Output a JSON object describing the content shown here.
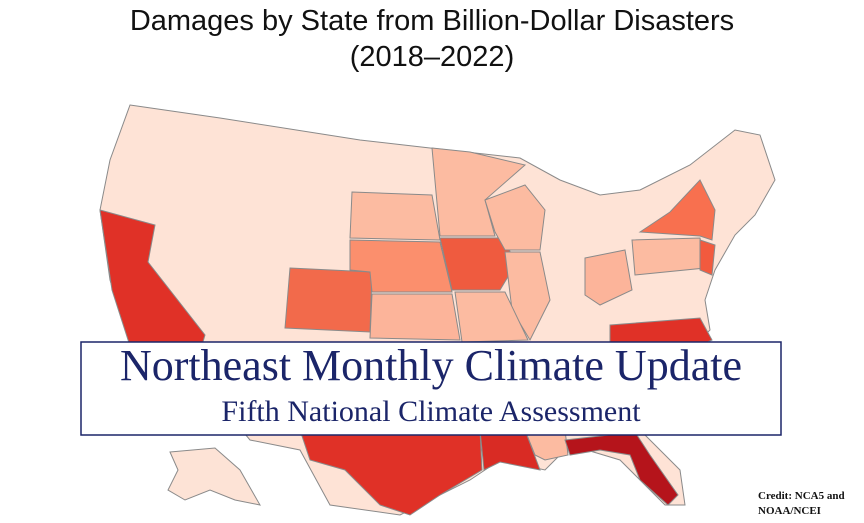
{
  "header": {
    "title": "Damages by State from Billion-Dollar Disasters",
    "subtitle": "(2018–2022)"
  },
  "banner": {
    "title": "Northeast Monthly Climate Update",
    "subtitle": "Fifth National Climate Assessment"
  },
  "credit": {
    "lines": [
      "Credit: NCA5 and",
      "NOAA/NCEI"
    ]
  }
}
